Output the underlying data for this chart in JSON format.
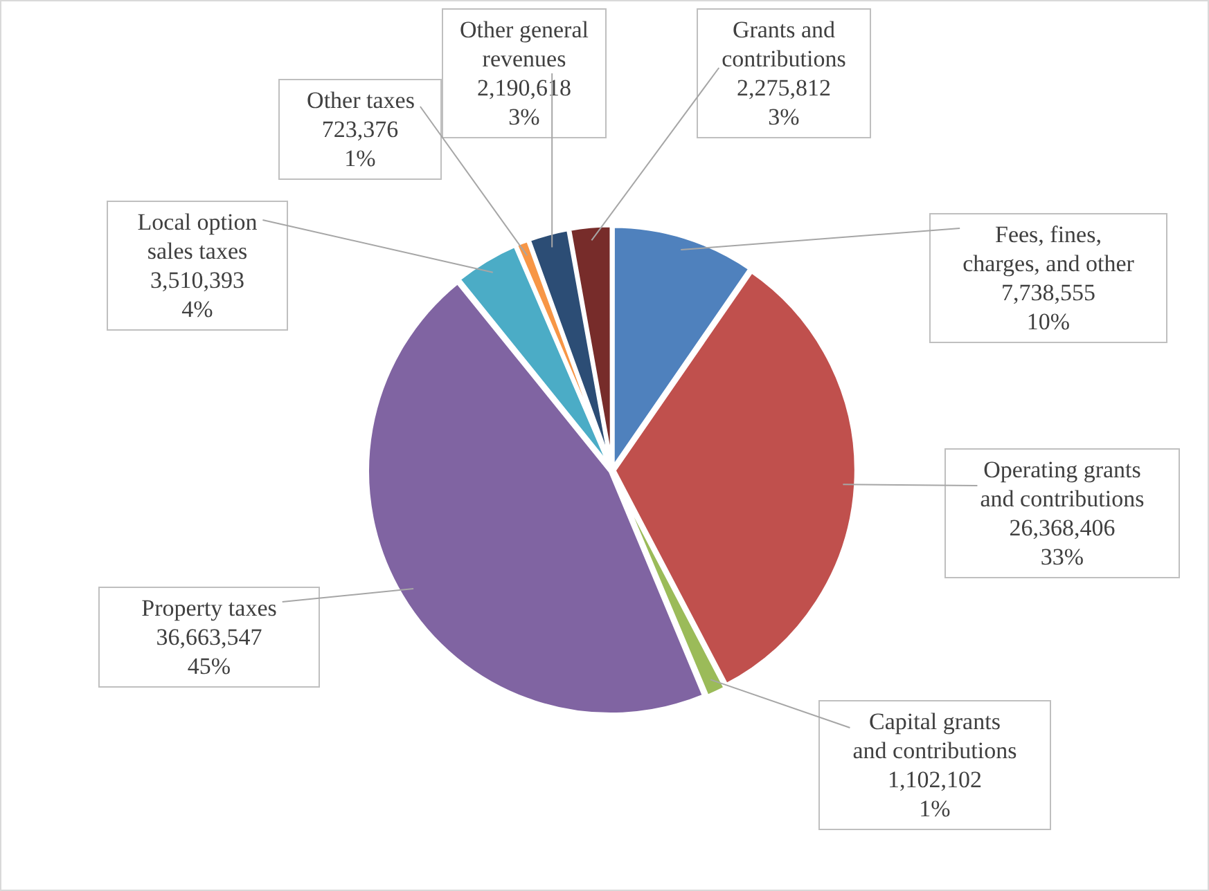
{
  "chart_data": {
    "type": "pie",
    "categories": [
      "Fees, fines, charges, and other",
      "Operating grants and contributions",
      "Capital grants and contributions",
      "Property taxes",
      "Local option sales taxes",
      "Other taxes",
      "Other general revenues",
      "Grants and contributions"
    ],
    "values": [
      7738555,
      26368406,
      1102102,
      36663547,
      3510393,
      723376,
      2190618,
      2275812
    ],
    "colors": [
      "#4f81bd",
      "#c0504d",
      "#9bbb59",
      "#8064a2",
      "#4bacc6",
      "#f79646",
      "#2c4d75",
      "#772c2a"
    ],
    "value_labels": [
      "7,738,555\n10%",
      "26,368,406\n33%",
      "1,102,102\n1%",
      "36,663,547\n45%",
      "3,510,393\n4%",
      "723,376\n1%",
      "2,190,618\n3%",
      "2,275,812\n3%"
    ]
  }
}
